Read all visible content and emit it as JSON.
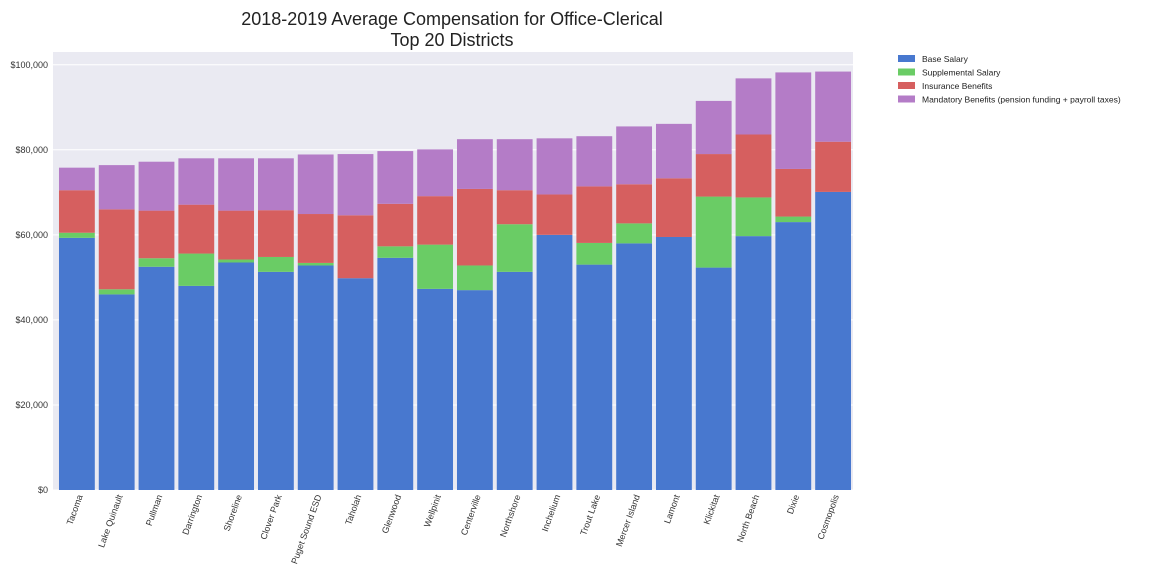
{
  "chart_data": {
    "type": "bar",
    "stacked": true,
    "title": [
      "2018-2019 Average Compensation for Office-Clerical",
      "Top 20 Districts"
    ],
    "xlabel": "",
    "ylabel": "",
    "ylim": [
      0,
      103000
    ],
    "yticks": [
      0,
      20000,
      40000,
      60000,
      80000,
      100000
    ],
    "ytick_labels": [
      "$0",
      "$20,000",
      "$40,000",
      "$60,000",
      "$80,000",
      "$100,000"
    ],
    "grid": true,
    "legend_position": "outside-top-right",
    "categories": [
      "Tacoma",
      "Lake Quinault",
      "Pullman",
      "Darrington",
      "Shoreline",
      "Clover Park",
      "Puget Sound ESD",
      "Taholah",
      "Glenwood",
      "Wellpinit",
      "Centerville",
      "Northshore",
      "Inchelium",
      "Trout Lake",
      "Mercer Island",
      "Lamont",
      "Klickitat",
      "North Beach",
      "Dixie",
      "Cosmopolis"
    ],
    "series": [
      {
        "name": "Base Salary",
        "color": "#4878cf",
        "values": [
          59300,
          46000,
          52500,
          48000,
          53500,
          51300,
          52800,
          49800,
          54600,
          47300,
          47000,
          51300,
          60000,
          53000,
          58000,
          59500,
          52300,
          59700,
          63000,
          70100
        ]
      },
      {
        "name": "Supplemental Salary",
        "color": "#6acc65",
        "values": [
          1200,
          1200,
          2000,
          7600,
          700,
          3500,
          600,
          0,
          2700,
          10400,
          5800,
          11200,
          0,
          5100,
          4700,
          0,
          16700,
          9100,
          1300,
          0
        ]
      },
      {
        "name": "Insurance Benefits",
        "color": "#d65f5f",
        "values": [
          10000,
          18800,
          11200,
          11500,
          11500,
          11000,
          11500,
          14800,
          10000,
          11400,
          18000,
          8000,
          9500,
          13300,
          9200,
          13800,
          10000,
          14800,
          11200,
          11800
        ]
      },
      {
        "name": "Mandatory Benefits (pension funding + payroll taxes)",
        "color": "#b47cc7",
        "values": [
          5300,
          10400,
          11500,
          10900,
          12300,
          12200,
          14000,
          14400,
          12400,
          11000,
          11700,
          12000,
          13200,
          11800,
          13600,
          12800,
          12500,
          13200,
          22700,
          16500
        ]
      }
    ]
  }
}
